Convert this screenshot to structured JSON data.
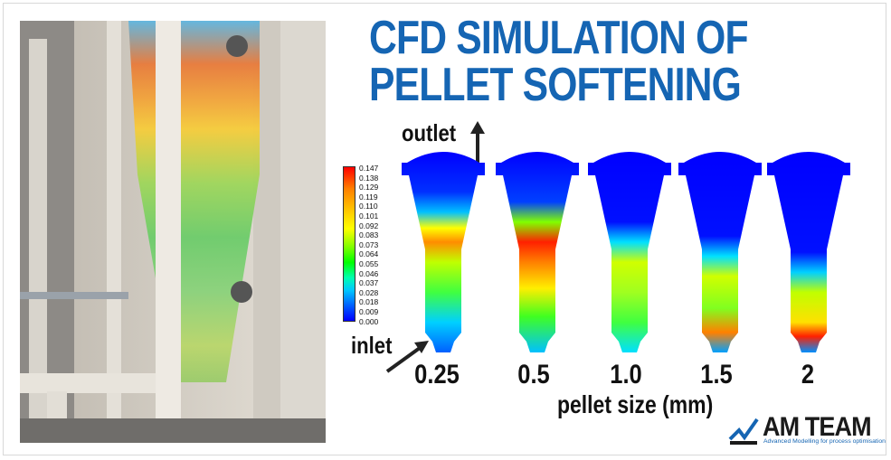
{
  "title": {
    "line1": "CFD SIMULATION OF",
    "line2": "PELLET SOFTENING"
  },
  "labels": {
    "outlet": "outlet",
    "inlet": "inlet",
    "xlabel": "pellet size (mm)"
  },
  "legend": {
    "ticks": [
      "0.147",
      "0.138",
      "0.129",
      "0.119",
      "0.110",
      "0.101",
      "0.092",
      "0.083",
      "0.073",
      "0.064",
      "0.055",
      "0.046",
      "0.037",
      "0.028",
      "0.018",
      "0.009",
      "0.000"
    ]
  },
  "pellet_sizes": [
    "0.25",
    "0.5",
    "1.0",
    "1.5",
    "2"
  ],
  "logo": {
    "name": "AM TEAM",
    "tagline": "Advanced Modelling for process optimisation"
  },
  "colors": {
    "title": "#1565b3",
    "logo_accent": "#1565b3"
  }
}
